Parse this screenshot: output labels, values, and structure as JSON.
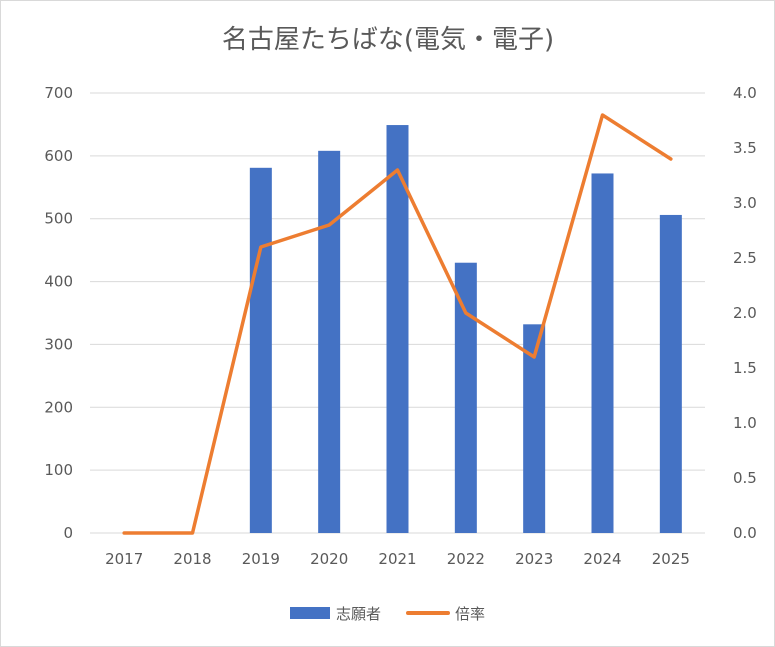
{
  "chart_data": {
    "type": "bar",
    "title": "名古屋たちばな(電気・電子)",
    "categories": [
      "2017",
      "2018",
      "2019",
      "2020",
      "2021",
      "2022",
      "2023",
      "2024",
      "2025"
    ],
    "series": [
      {
        "name": "志願者",
        "type": "bar",
        "axis": "left",
        "color": "#4472C4",
        "values": [
          0,
          0,
          581,
          608,
          649,
          430,
          332,
          572,
          506
        ]
      },
      {
        "name": "倍率",
        "type": "line",
        "axis": "right",
        "color": "#ED7D31",
        "values": [
          0.0,
          0.0,
          2.6,
          2.8,
          3.3,
          2.0,
          1.6,
          3.8,
          3.4
        ]
      }
    ],
    "y_left": {
      "lim": [
        0,
        700
      ],
      "ticks": [
        "0",
        "100",
        "200",
        "300",
        "400",
        "500",
        "600",
        "700"
      ]
    },
    "y_right": {
      "lim": [
        0,
        4
      ],
      "ticks": [
        "0.0",
        "0.5",
        "1.0",
        "1.5",
        "2.0",
        "2.5",
        "3.0",
        "3.5",
        "4.0"
      ]
    },
    "grid": true,
    "legend_position": "bottom"
  }
}
